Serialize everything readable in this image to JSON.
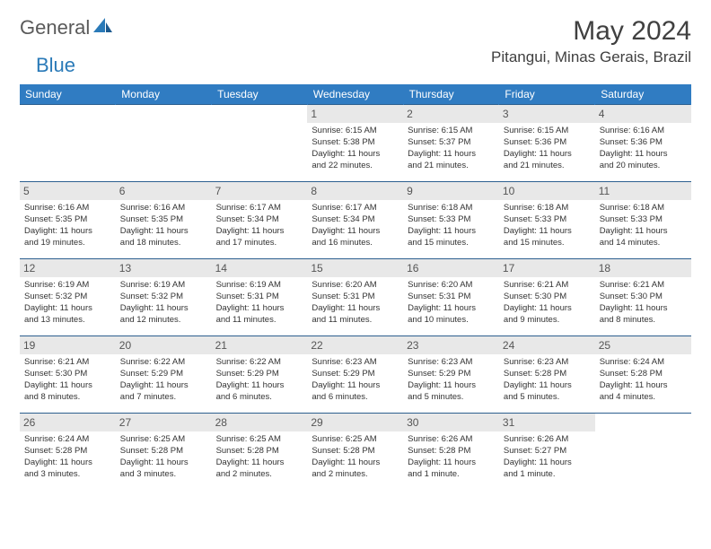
{
  "logo": {
    "part1": "General",
    "part2": "Blue"
  },
  "title": "May 2024",
  "location": "Pitangui, Minas Gerais, Brazil",
  "colors": {
    "header_bg": "#307cc2",
    "header_fg": "#ffffff",
    "daynum_bg": "#e8e8e8",
    "row_border": "#2d5f8f",
    "text": "#333333",
    "logo_gray": "#5a5a5a",
    "logo_blue": "#2a7ab8"
  },
  "weekdays": [
    "Sunday",
    "Monday",
    "Tuesday",
    "Wednesday",
    "Thursday",
    "Friday",
    "Saturday"
  ],
  "weeks": [
    [
      null,
      null,
      null,
      {
        "n": "1",
        "sr": "6:15 AM",
        "ss": "5:38 PM",
        "d1": "11 hours",
        "d2": "and 22 minutes."
      },
      {
        "n": "2",
        "sr": "6:15 AM",
        "ss": "5:37 PM",
        "d1": "11 hours",
        "d2": "and 21 minutes."
      },
      {
        "n": "3",
        "sr": "6:15 AM",
        "ss": "5:36 PM",
        "d1": "11 hours",
        "d2": "and 21 minutes."
      },
      {
        "n": "4",
        "sr": "6:16 AM",
        "ss": "5:36 PM",
        "d1": "11 hours",
        "d2": "and 20 minutes."
      }
    ],
    [
      {
        "n": "5",
        "sr": "6:16 AM",
        "ss": "5:35 PM",
        "d1": "11 hours",
        "d2": "and 19 minutes."
      },
      {
        "n": "6",
        "sr": "6:16 AM",
        "ss": "5:35 PM",
        "d1": "11 hours",
        "d2": "and 18 minutes."
      },
      {
        "n": "7",
        "sr": "6:17 AM",
        "ss": "5:34 PM",
        "d1": "11 hours",
        "d2": "and 17 minutes."
      },
      {
        "n": "8",
        "sr": "6:17 AM",
        "ss": "5:34 PM",
        "d1": "11 hours",
        "d2": "and 16 minutes."
      },
      {
        "n": "9",
        "sr": "6:18 AM",
        "ss": "5:33 PM",
        "d1": "11 hours",
        "d2": "and 15 minutes."
      },
      {
        "n": "10",
        "sr": "6:18 AM",
        "ss": "5:33 PM",
        "d1": "11 hours",
        "d2": "and 15 minutes."
      },
      {
        "n": "11",
        "sr": "6:18 AM",
        "ss": "5:33 PM",
        "d1": "11 hours",
        "d2": "and 14 minutes."
      }
    ],
    [
      {
        "n": "12",
        "sr": "6:19 AM",
        "ss": "5:32 PM",
        "d1": "11 hours",
        "d2": "and 13 minutes."
      },
      {
        "n": "13",
        "sr": "6:19 AM",
        "ss": "5:32 PM",
        "d1": "11 hours",
        "d2": "and 12 minutes."
      },
      {
        "n": "14",
        "sr": "6:19 AM",
        "ss": "5:31 PM",
        "d1": "11 hours",
        "d2": "and 11 minutes."
      },
      {
        "n": "15",
        "sr": "6:20 AM",
        "ss": "5:31 PM",
        "d1": "11 hours",
        "d2": "and 11 minutes."
      },
      {
        "n": "16",
        "sr": "6:20 AM",
        "ss": "5:31 PM",
        "d1": "11 hours",
        "d2": "and 10 minutes."
      },
      {
        "n": "17",
        "sr": "6:21 AM",
        "ss": "5:30 PM",
        "d1": "11 hours",
        "d2": "and 9 minutes."
      },
      {
        "n": "18",
        "sr": "6:21 AM",
        "ss": "5:30 PM",
        "d1": "11 hours",
        "d2": "and 8 minutes."
      }
    ],
    [
      {
        "n": "19",
        "sr": "6:21 AM",
        "ss": "5:30 PM",
        "d1": "11 hours",
        "d2": "and 8 minutes."
      },
      {
        "n": "20",
        "sr": "6:22 AM",
        "ss": "5:29 PM",
        "d1": "11 hours",
        "d2": "and 7 minutes."
      },
      {
        "n": "21",
        "sr": "6:22 AM",
        "ss": "5:29 PM",
        "d1": "11 hours",
        "d2": "and 6 minutes."
      },
      {
        "n": "22",
        "sr": "6:23 AM",
        "ss": "5:29 PM",
        "d1": "11 hours",
        "d2": "and 6 minutes."
      },
      {
        "n": "23",
        "sr": "6:23 AM",
        "ss": "5:29 PM",
        "d1": "11 hours",
        "d2": "and 5 minutes."
      },
      {
        "n": "24",
        "sr": "6:23 AM",
        "ss": "5:28 PM",
        "d1": "11 hours",
        "d2": "and 5 minutes."
      },
      {
        "n": "25",
        "sr": "6:24 AM",
        "ss": "5:28 PM",
        "d1": "11 hours",
        "d2": "and 4 minutes."
      }
    ],
    [
      {
        "n": "26",
        "sr": "6:24 AM",
        "ss": "5:28 PM",
        "d1": "11 hours",
        "d2": "and 3 minutes."
      },
      {
        "n": "27",
        "sr": "6:25 AM",
        "ss": "5:28 PM",
        "d1": "11 hours",
        "d2": "and 3 minutes."
      },
      {
        "n": "28",
        "sr": "6:25 AM",
        "ss": "5:28 PM",
        "d1": "11 hours",
        "d2": "and 2 minutes."
      },
      {
        "n": "29",
        "sr": "6:25 AM",
        "ss": "5:28 PM",
        "d1": "11 hours",
        "d2": "and 2 minutes."
      },
      {
        "n": "30",
        "sr": "6:26 AM",
        "ss": "5:28 PM",
        "d1": "11 hours",
        "d2": "and 1 minute."
      },
      {
        "n": "31",
        "sr": "6:26 AM",
        "ss": "5:27 PM",
        "d1": "11 hours",
        "d2": "and 1 minute."
      },
      null
    ]
  ],
  "labels": {
    "sunrise": "Sunrise:",
    "sunset": "Sunset:",
    "daylight": "Daylight:"
  }
}
